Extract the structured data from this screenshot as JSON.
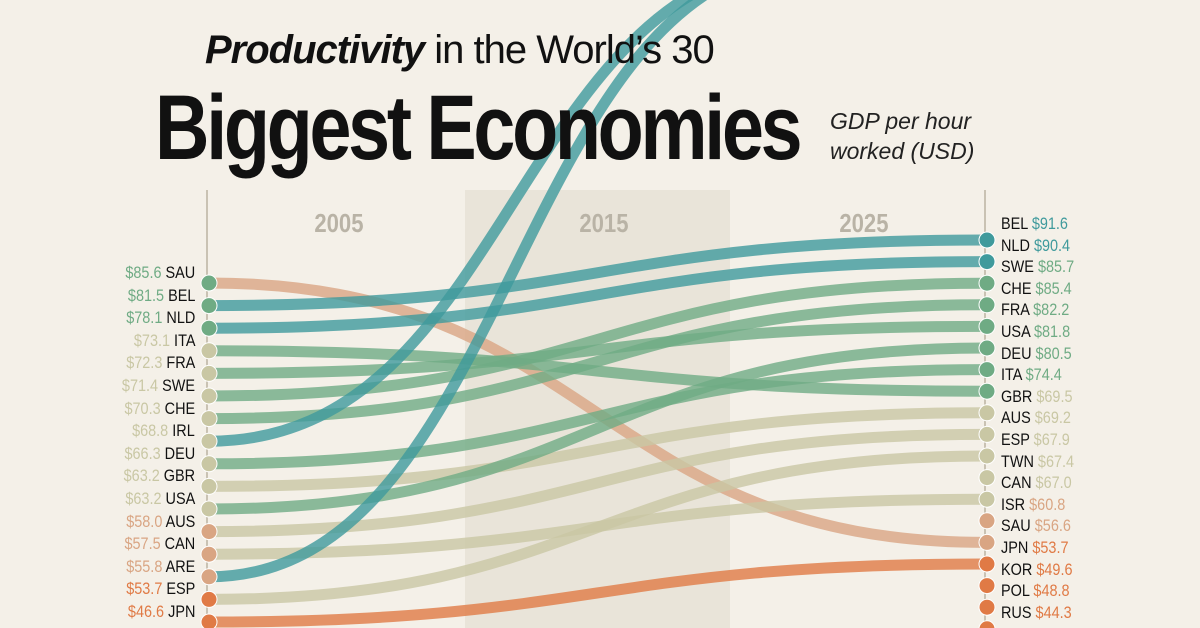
{
  "title": {
    "emphasis": "Productivity",
    "rest": "in the World’s 30",
    "main": "Biggest Economies"
  },
  "subtitle": "GDP per hour worked (USD)",
  "chart_data": {
    "type": "slope",
    "columns": [
      "2005",
      "2015",
      "2025"
    ],
    "left_2005": [
      {
        "code": "SAU",
        "value": 85.6
      },
      {
        "code": "BEL",
        "value": 81.5
      },
      {
        "code": "NLD",
        "value": 78.1
      },
      {
        "code": "ITA",
        "value": 73.1
      },
      {
        "code": "FRA",
        "value": 72.3
      },
      {
        "code": "SWE",
        "value": 71.4
      },
      {
        "code": "CHE",
        "value": 70.3
      },
      {
        "code": "IRL",
        "value": 68.8
      },
      {
        "code": "DEU",
        "value": 66.3
      },
      {
        "code": "GBR",
        "value": 63.2
      },
      {
        "code": "USA",
        "value": 63.2
      },
      {
        "code": "AUS",
        "value": 58.0
      },
      {
        "code": "CAN",
        "value": 57.5
      },
      {
        "code": "ARE",
        "value": 55.8
      },
      {
        "code": "ESP",
        "value": 53.7
      },
      {
        "code": "JPN",
        "value": 46.6
      }
    ],
    "right_2025": [
      {
        "code": "BEL",
        "value": 91.6
      },
      {
        "code": "NLD",
        "value": 90.4
      },
      {
        "code": "SWE",
        "value": 85.7
      },
      {
        "code": "CHE",
        "value": 85.4
      },
      {
        "code": "FRA",
        "value": 82.2
      },
      {
        "code": "USA",
        "value": 81.8
      },
      {
        "code": "DEU",
        "value": 80.5
      },
      {
        "code": "ITA",
        "value": 74.4
      },
      {
        "code": "GBR",
        "value": 69.5
      },
      {
        "code": "AUS",
        "value": 69.2
      },
      {
        "code": "ESP",
        "value": 67.9
      },
      {
        "code": "TWN",
        "value": 67.4
      },
      {
        "code": "CAN",
        "value": 67.0
      },
      {
        "code": "ISR",
        "value": 60.8
      },
      {
        "code": "SAU",
        "value": 56.6
      },
      {
        "code": "JPN",
        "value": 53.7
      },
      {
        "code": "KOR",
        "value": 49.6
      },
      {
        "code": "POL",
        "value": 48.8
      },
      {
        "code": "RUS",
        "value": 44.3
      }
    ],
    "colors": {
      "teal": "#3f9a9c",
      "green": "#6fab84",
      "beige": "#c9c7a4",
      "tan": "#d9a583",
      "orange": "#e07a45"
    }
  }
}
